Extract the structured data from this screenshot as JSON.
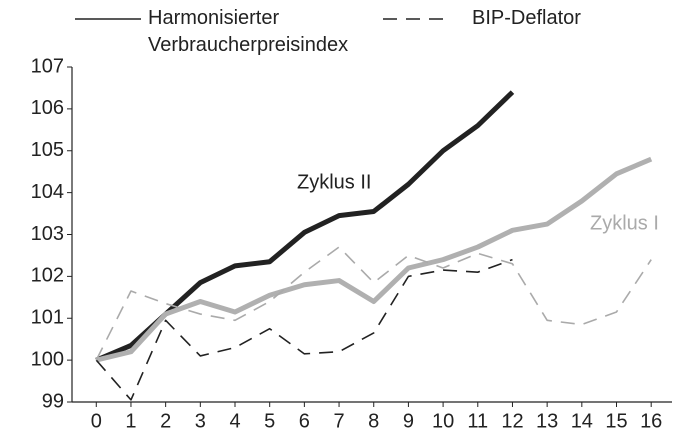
{
  "chart_data": {
    "type": "line",
    "x": [
      0,
      1,
      2,
      3,
      4,
      5,
      6,
      7,
      8,
      9,
      10,
      11,
      12,
      13,
      14,
      15,
      16
    ],
    "xlim": [
      -0.7,
      16.6
    ],
    "xticks": [
      0,
      1,
      2,
      3,
      4,
      5,
      6,
      7,
      8,
      9,
      10,
      11,
      12,
      13,
      14,
      15,
      16
    ],
    "ylim": [
      99,
      107
    ],
    "yticks": [
      99,
      100,
      101,
      102,
      103,
      104,
      105,
      106,
      107
    ],
    "series": [
      {
        "name": "Harmonisierter Verbraucherpreisindex",
        "color": "#222222",
        "width": 5,
        "dash": false,
        "values": [
          100,
          100.35,
          101.1,
          101.85,
          102.25,
          102.35,
          103.05,
          103.45,
          103.55,
          104.2,
          105,
          105.6,
          106.4,
          null,
          null,
          null,
          null
        ]
      },
      {
        "name": "Harmonisierter Verbraucherpreisindex",
        "color": "#b0b0b0",
        "width": 5,
        "dash": false,
        "values": [
          100,
          100.2,
          101.1,
          101.4,
          101.15,
          101.55,
          101.8,
          101.9,
          101.4,
          102.2,
          102.4,
          102.7,
          103.1,
          103.25,
          103.8,
          104.45,
          104.8
        ]
      },
      {
        "name": "BIP-Deflator",
        "color": "#222222",
        "width": 1.6,
        "dash": true,
        "values": [
          100,
          99.05,
          100.95,
          100.1,
          100.3,
          100.75,
          100.15,
          100.2,
          100.65,
          102,
          102.15,
          102.1,
          102.4,
          null,
          null,
          null,
          null
        ]
      },
      {
        "name": "BIP-Deflator",
        "color": "#aaaaaa",
        "width": 1.6,
        "dash": true,
        "values": [
          100,
          101.65,
          101.35,
          101.1,
          100.95,
          101.4,
          102.1,
          102.7,
          101.85,
          102.5,
          102.2,
          102.55,
          102.3,
          100.95,
          100.85,
          101.15,
          102.4
        ]
      }
    ],
    "annotations": [
      {
        "text": "Zyklus II",
        "color": "#222222"
      },
      {
        "text": "Zyklus I",
        "color": "#aaaaaa"
      }
    ]
  }
}
